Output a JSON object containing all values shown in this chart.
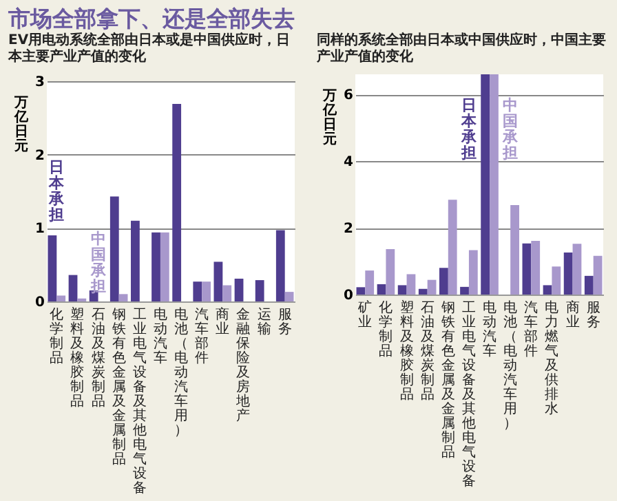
{
  "chart_data": [
    {
      "type": "bar",
      "title": "市场全部拿下、还是全部失去",
      "subtitle": "EV用电动系统全部由日本或是中国供应时，日本主要产业产值的变化",
      "ylabel": "万亿日元",
      "categories": [
        "化学制品",
        "塑料及橡胶制品",
        "石油及煤炭制品",
        "钢铁有色金属及金属制品",
        "工业电气设备及其他电气设备",
        "电动汽车",
        "电池（电动汽车用）",
        "汽车部件",
        "商业",
        "金融保险及房地产",
        "运输",
        "服务"
      ],
      "series": [
        {
          "name": "日本承担",
          "color": "#4f3d8f",
          "values": [
            0.9,
            0.36,
            0.15,
            1.43,
            1.1,
            0.94,
            2.69,
            0.27,
            0.54,
            0.31,
            0.29,
            0.97
          ]
        },
        {
          "name": "中国承担",
          "color": "#a898cc",
          "values": [
            0.08,
            0.04,
            null,
            0.1,
            null,
            0.94,
            0,
            0.27,
            0.22,
            null,
            null,
            0.13
          ]
        }
      ],
      "ylim": [
        0,
        3
      ],
      "yticks": [
        0,
        1,
        2,
        3
      ],
      "grid": "y"
    },
    {
      "type": "bar",
      "subtitle": "同样的系统全部由日本或中国供应时，中国主要产业产值的变化",
      "ylabel": "万亿日元",
      "categories": [
        "矿业",
        "化学制品",
        "塑料及橡胶制品",
        "石油及煤炭制品",
        "钢铁有色金属及金属制品",
        "工业电气设备及其他电气设备",
        "电动汽车",
        "电池（电动汽车用）",
        "汽车部件",
        "电力燃气及供排水",
        "商业",
        "服务"
      ],
      "series": [
        {
          "name": "日本承担",
          "color": "#4f3d8f",
          "values": [
            0.22,
            0.31,
            0.28,
            0.17,
            0.8,
            0.23,
            6.6,
            0,
            1.53,
            0.28,
            1.26,
            0.56
          ]
        },
        {
          "name": "中国承担",
          "color": "#a898cc",
          "values": [
            0.72,
            1.36,
            0.61,
            0.44,
            2.84,
            1.33,
            6.6,
            2.68,
            1.61,
            0.84,
            1.52,
            1.16
          ]
        }
      ],
      "ylim": [
        0,
        6.6
      ],
      "yticks": [
        0,
        2,
        4,
        6
      ],
      "grid": "y"
    }
  ]
}
